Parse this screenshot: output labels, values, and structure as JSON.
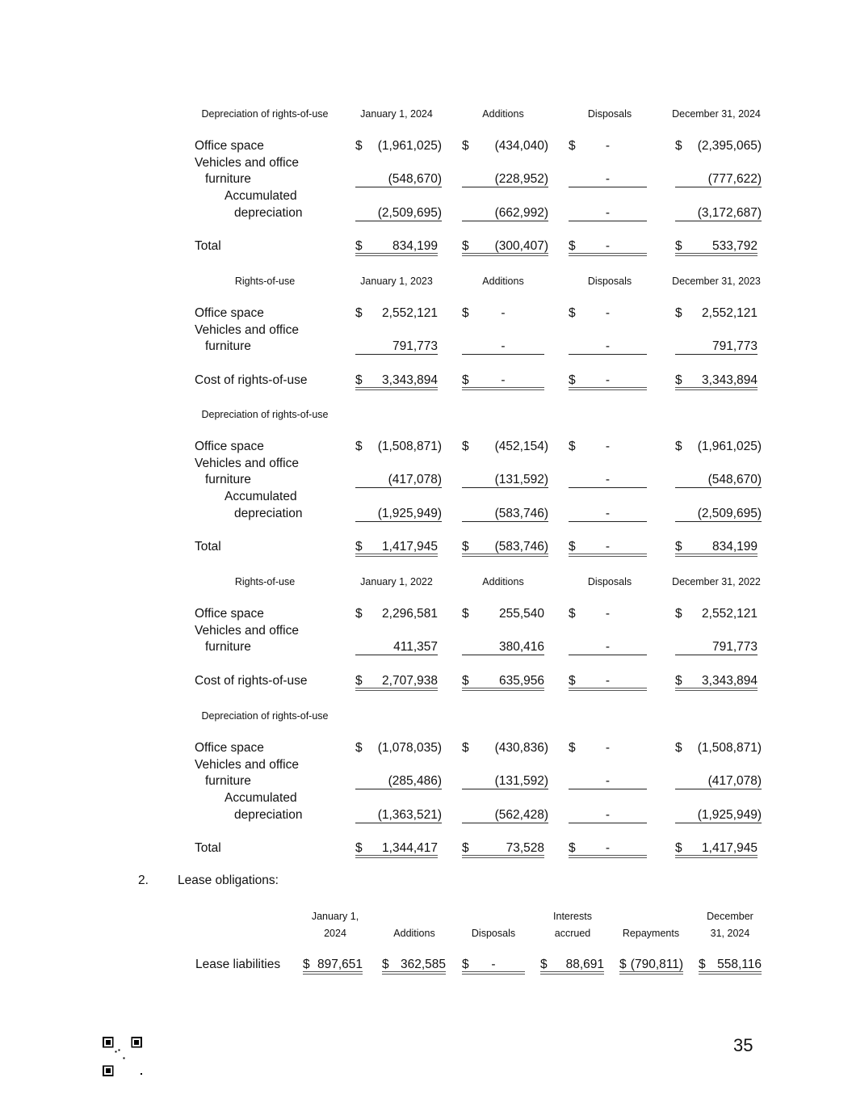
{
  "sections": [
    {
      "title": "Depreciation of rights-of-use",
      "columns": [
        "January 1, 2024",
        "Additions",
        "Disposals",
        "December 31, 2024"
      ],
      "rows": [
        {
          "label": [
            "Office space"
          ],
          "dollar": true,
          "rule": "",
          "values": [
            "(1,961,025)",
            "(434,040)",
            "-",
            "(2,395,065)"
          ]
        },
        {
          "label": [
            "Vehicles and office",
            "furniture"
          ],
          "dollar": false,
          "rule": "single",
          "values": [
            "(548,670)",
            "(228,952)",
            "-",
            "(777,622)"
          ]
        },
        {
          "label": [
            "Accumulated",
            "depreciation"
          ],
          "dollar": false,
          "rule": "single",
          "indent": true,
          "values": [
            "(2,509,695)",
            "(662,992)",
            "-",
            "(3,172,687)"
          ]
        },
        {
          "label": [
            "Total"
          ],
          "dollar": true,
          "rule": "double",
          "total": true,
          "values": [
            "834,199",
            "(300,407)",
            "-",
            "533,792"
          ]
        }
      ]
    },
    {
      "title": "Rights-of-use",
      "columns": [
        "January 1, 2023",
        "Additions",
        "Disposals",
        "December 31, 2023"
      ],
      "rows": [
        {
          "label": [
            "Office space"
          ],
          "dollar": true,
          "rule": "",
          "values": [
            "2,552,121",
            "-",
            "-",
            "2,552,121"
          ]
        },
        {
          "label": [
            "Vehicles and office",
            "furniture"
          ],
          "dollar": false,
          "rule": "single",
          "values": [
            "791,773",
            "-",
            "-",
            "791,773"
          ]
        },
        {
          "label": [
            "Cost of rights-of-use"
          ],
          "dollar": true,
          "rule": "double",
          "total": true,
          "values": [
            "3,343,894",
            "-",
            "-",
            "3,343,894"
          ]
        }
      ]
    },
    {
      "title": "Depreciation of rights-of-use",
      "columns": [],
      "rows": [
        {
          "label": [
            "Office space"
          ],
          "dollar": true,
          "rule": "",
          "values": [
            "(1,508,871)",
            "(452,154)",
            "-",
            "(1,961,025)"
          ]
        },
        {
          "label": [
            "Vehicles and office",
            "furniture"
          ],
          "dollar": false,
          "rule": "single",
          "values": [
            "(417,078)",
            "(131,592)",
            "-",
            "(548,670)"
          ]
        },
        {
          "label": [
            "Accumulated",
            "depreciation"
          ],
          "dollar": false,
          "rule": "single",
          "indent": true,
          "values": [
            "(1,925,949)",
            "(583,746)",
            "-",
            "(2,509,695)"
          ]
        },
        {
          "label": [
            "Total"
          ],
          "dollar": true,
          "rule": "double",
          "total": true,
          "values": [
            "1,417,945",
            "(583,746)",
            "-",
            "834,199"
          ]
        }
      ]
    },
    {
      "title": "Rights-of-use",
      "columns": [
        "January 1, 2022",
        "Additions",
        "Disposals",
        "December 31, 2022"
      ],
      "rows": [
        {
          "label": [
            "Office space"
          ],
          "dollar": true,
          "rule": "",
          "values": [
            "2,296,581",
            "255,540",
            "-",
            "2,552,121"
          ]
        },
        {
          "label": [
            "Vehicles and office",
            "furniture"
          ],
          "dollar": false,
          "rule": "single",
          "values": [
            "411,357",
            "380,416",
            "-",
            "791,773"
          ]
        },
        {
          "label": [
            "Cost of rights-of-use"
          ],
          "dollar": true,
          "rule": "double",
          "total": true,
          "values": [
            "2,707,938",
            "635,956",
            "-",
            "3,343,894"
          ]
        }
      ]
    },
    {
      "title": "Depreciation of rights-of-use",
      "columns": [],
      "rows": [
        {
          "label": [
            "Office space"
          ],
          "dollar": true,
          "rule": "",
          "values": [
            "(1,078,035)",
            "(430,836)",
            "-",
            "(1,508,871)"
          ]
        },
        {
          "label": [
            "Vehicles and office",
            "furniture"
          ],
          "dollar": false,
          "rule": "single",
          "values": [
            "(285,486)",
            "(131,592)",
            "-",
            "(417,078)"
          ]
        },
        {
          "label": [
            "Accumulated",
            "depreciation"
          ],
          "dollar": false,
          "rule": "single",
          "indent": true,
          "values": [
            "(1,363,521)",
            "(562,428)",
            "-",
            "(1,925,949)"
          ]
        },
        {
          "label": [
            "Total"
          ],
          "dollar": true,
          "rule": "double",
          "total": true,
          "values": [
            "1,344,417",
            "73,528",
            "-",
            "1,417,945"
          ]
        }
      ]
    }
  ],
  "lease": {
    "number": "2.",
    "heading": "Lease obligations:",
    "columns": [
      [
        "January 1,",
        "2024"
      ],
      [
        "",
        "Additions"
      ],
      [
        "",
        "Disposals"
      ],
      [
        "Interests",
        "accrued"
      ],
      [
        "",
        "Repayments"
      ],
      [
        "December",
        "31, 2024"
      ]
    ],
    "row": {
      "label": "Lease liabilities",
      "values": [
        "897,651",
        "362,585",
        "-",
        "88,691",
        "(790,811)",
        "558,116"
      ]
    }
  },
  "dollar_sign": "$",
  "page_number": "35",
  "qr_icon": "qr-code-icon"
}
